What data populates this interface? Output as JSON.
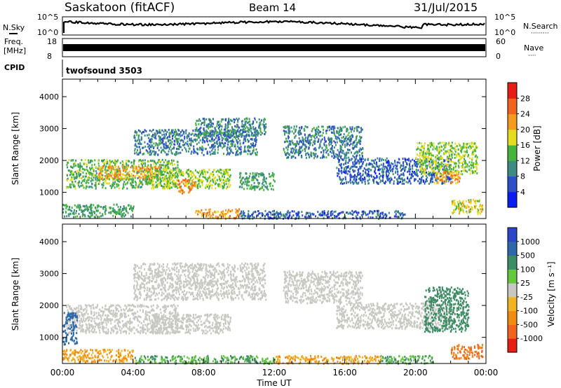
{
  "header": {
    "station": "Saskatoon (fitACF)",
    "beam": "Beam 14",
    "date": "31/Jul/2015"
  },
  "noise_panel": {
    "left_label": "N.Sky",
    "right_label": "N.Search",
    "left_ticks": [
      "10^5",
      "10^0"
    ],
    "right_ticks": [
      "10^5",
      "10^0"
    ],
    "right_legend_dots": "·········"
  },
  "freq_panel": {
    "left_label_line1": "Freq.",
    "left_label_line2": "[MHz]",
    "left_ticks": [
      "18",
      "8"
    ],
    "right_label": "Nave",
    "right_ticks": [
      "60",
      "0"
    ],
    "right_legend_dots": "····"
  },
  "cpid_panel": {
    "label": "CPID",
    "program": "twofsound  3503"
  },
  "power_panel": {
    "ylabel": "Slant Range [km]",
    "colorbar_label": "Power [dB]",
    "colorbar_ticks": [
      "28",
      "24",
      "20",
      "16",
      "12",
      "8",
      "4"
    ],
    "colors": [
      "#0a1df0",
      "#2d4fc8",
      "#3c8c82",
      "#46b43c",
      "#e6dc1e",
      "#f59b1e",
      "#f0641e",
      "#e61e14"
    ]
  },
  "velocity_panel": {
    "ylabel": "Slant Range [km]",
    "colorbar_label": "Velocity  [m s⁻¹]",
    "colorbar_ticks": [
      "1000",
      "500",
      "100",
      "25",
      "-25",
      "-100",
      "-500",
      "-1000"
    ],
    "colors": [
      "#2d46c8",
      "#2d69aa",
      "#3c8c64",
      "#64c83c",
      "#c8c8c3",
      "#f0b423",
      "#f08c14",
      "#f0641e",
      "#e61e14"
    ]
  },
  "x_axis": {
    "label": "Time UT",
    "ticks": [
      "00:00",
      "04:00",
      "08:00",
      "12:00",
      "16:00",
      "20:00",
      "00:00"
    ]
  },
  "chart_data": [
    {
      "type": "heatmap",
      "title": "",
      "xlabel": "",
      "ylabel": "Slant Range [km]",
      "xlim": [
        0,
        24
      ],
      "ylim": [
        180,
        4550
      ],
      "y_ticks": [
        1000,
        2000,
        3000,
        4000
      ],
      "colorbar": {
        "label": "Power [dB]",
        "range": [
          0,
          32
        ],
        "ticks": [
          4,
          8,
          12,
          16,
          20,
          24,
          28
        ]
      },
      "regions": [
        {
          "t0": 0.2,
          "t1": 6.5,
          "r0": 1150,
          "r1": 2050,
          "value": 14
        },
        {
          "t0": 2.0,
          "t1": 5.5,
          "r0": 1450,
          "r1": 1850,
          "value": 22
        },
        {
          "t0": 4.0,
          "t1": 11.0,
          "r0": 2200,
          "r1": 3000,
          "value": 9
        },
        {
          "t0": 7.5,
          "t1": 11.5,
          "r0": 2800,
          "r1": 3350,
          "value": 10
        },
        {
          "t0": 5.0,
          "t1": 9.5,
          "r0": 1150,
          "r1": 1750,
          "value": 16
        },
        {
          "t0": 6.5,
          "t1": 7.5,
          "r0": 1000,
          "r1": 1450,
          "value": 24
        },
        {
          "t0": 0.0,
          "t1": 4.0,
          "r0": 250,
          "r1": 650,
          "value": 12
        },
        {
          "t0": 7.5,
          "t1": 10.0,
          "r0": 200,
          "r1": 500,
          "value": 22
        },
        {
          "t0": 10.0,
          "t1": 19.5,
          "r0": 200,
          "r1": 450,
          "value": 7
        },
        {
          "t0": 12.5,
          "t1": 17.0,
          "r0": 2100,
          "r1": 3100,
          "value": 9
        },
        {
          "t0": 15.5,
          "t1": 22.0,
          "r0": 1300,
          "r1": 2100,
          "value": 7
        },
        {
          "t0": 20.0,
          "t1": 23.5,
          "r0": 1600,
          "r1": 2600,
          "value": 16
        },
        {
          "t0": 21.0,
          "t1": 22.5,
          "r0": 1300,
          "r1": 1700,
          "value": 22
        },
        {
          "t0": 22.0,
          "t1": 23.8,
          "r0": 350,
          "r1": 800,
          "value": 18
        },
        {
          "t0": 10.0,
          "t1": 12.0,
          "r0": 1100,
          "r1": 1650,
          "value": 12
        }
      ]
    },
    {
      "type": "heatmap",
      "title": "",
      "xlabel": "Time UT",
      "ylabel": "Slant Range [km]",
      "xlim": [
        0,
        24
      ],
      "ylim": [
        180,
        4550
      ],
      "y_ticks": [
        1000,
        2000,
        3000,
        4000
      ],
      "colorbar": {
        "label": "Velocity [m s-1]",
        "ticks": [
          1000,
          500,
          100,
          25,
          -25,
          -100,
          -500,
          -1000
        ]
      },
      "regions": [
        {
          "t0": 0.2,
          "t1": 6.5,
          "r0": 1150,
          "r1": 2050,
          "value": 0
        },
        {
          "t0": 4.0,
          "t1": 11.5,
          "r0": 2200,
          "r1": 3350,
          "value": 0
        },
        {
          "t0": 5.0,
          "t1": 9.5,
          "r0": 1150,
          "r1": 1750,
          "value": 0
        },
        {
          "t0": 0.0,
          "t1": 0.8,
          "r0": 800,
          "r1": 1800,
          "value": 700
        },
        {
          "t0": 0.0,
          "t1": 4.0,
          "r0": 250,
          "r1": 650,
          "value": -60
        },
        {
          "t0": 4.0,
          "t1": 12.0,
          "r0": 200,
          "r1": 450,
          "value": 60
        },
        {
          "t0": 12.0,
          "t1": 18.0,
          "r0": 200,
          "r1": 450,
          "value": -60
        },
        {
          "t0": 18.0,
          "t1": 21.0,
          "r0": 200,
          "r1": 450,
          "value": 60
        },
        {
          "t0": 12.5,
          "t1": 17.0,
          "r0": 2100,
          "r1": 3100,
          "value": 0
        },
        {
          "t0": 15.5,
          "t1": 22.0,
          "r0": 1300,
          "r1": 2100,
          "value": 0
        },
        {
          "t0": 20.5,
          "t1": 23.0,
          "r0": 1200,
          "r1": 2600,
          "value": 200
        },
        {
          "t0": 22.0,
          "t1": 23.8,
          "r0": 350,
          "r1": 800,
          "value": -300
        }
      ]
    }
  ]
}
